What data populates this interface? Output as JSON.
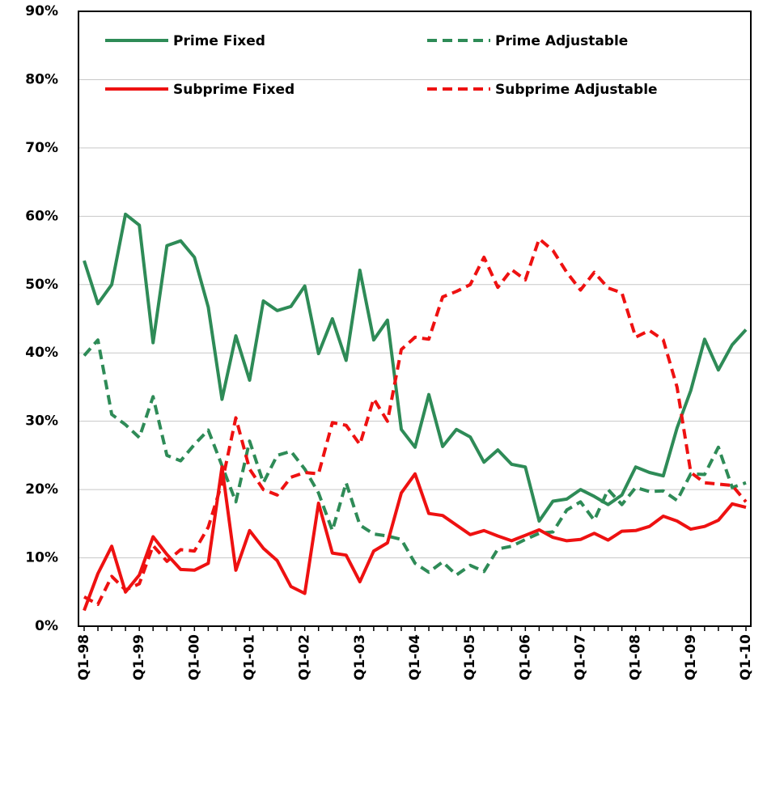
{
  "chart_data": {
    "type": "line",
    "categories": [
      "Q1-98",
      null,
      null,
      null,
      "Q1-99",
      null,
      null,
      null,
      "Q1-00",
      null,
      null,
      null,
      "Q1-01",
      null,
      null,
      null,
      "Q1-02",
      null,
      null,
      null,
      "Q1-03",
      null,
      null,
      null,
      "Q1-04",
      null,
      null,
      null,
      "Q1-05",
      null,
      null,
      null,
      "Q1-06",
      null,
      null,
      null,
      "Q1-07",
      null,
      null,
      null,
      "Q1-08",
      null,
      null,
      null,
      "Q1-09",
      null,
      null,
      null,
      "Q1-10"
    ],
    "series": [
      {
        "name": "Prime Fixed",
        "color": "#2e8b57",
        "dashed": false,
        "values": [
          53.5,
          47.2,
          50,
          60.3,
          58.7,
          41.5,
          55.7,
          56.4,
          54,
          46.7,
          33.2,
          42.5,
          36,
          47.6,
          46.2,
          46.8,
          49.8,
          39.9,
          45,
          38.9,
          52.1,
          41.9,
          44.8,
          28.8,
          26.2,
          33.9,
          26.3,
          28.8,
          27.7,
          24,
          25.8,
          23.7,
          23.3,
          15.4,
          18.3,
          18.6,
          20,
          19,
          17.8,
          19.2,
          23.3,
          22.5,
          22,
          29,
          34.5,
          42,
          37.5,
          41.2,
          43.4
        ]
      },
      {
        "name": "Prime Adjustable",
        "color": "#2e8b57",
        "dashed": true,
        "values": [
          39.6,
          41.9,
          31,
          29.5,
          27.6,
          33.6,
          25,
          24.2,
          26.6,
          28.7,
          23.5,
          18.2,
          27.1,
          21,
          25,
          25.6,
          23,
          19.5,
          14,
          21,
          14.8,
          13.5,
          13.2,
          12.7,
          9.2,
          7.9,
          9.4,
          7.5,
          8.9,
          8,
          11.3,
          11.7,
          12.7,
          13.6,
          13.8,
          17,
          18.2,
          15.5,
          20,
          17.8,
          20.3,
          19.7,
          19.8,
          18.4,
          22.3,
          22.2,
          26.2,
          20.3,
          21
        ]
      },
      {
        "name": "Subprime Fixed",
        "color": "#ee1111",
        "dashed": false,
        "values": [
          2.3,
          7.7,
          11.7,
          5,
          7.5,
          13.1,
          10.5,
          8.3,
          8.2,
          9.2,
          23.3,
          8.2,
          14,
          11.4,
          9.6,
          5.8,
          4.8,
          18,
          10.7,
          10.4,
          6.5,
          11,
          12.2,
          19.5,
          22.3,
          16.5,
          16.2,
          14.8,
          13.4,
          14,
          13.2,
          12.5,
          13.3,
          14.1,
          13,
          12.5,
          12.7,
          13.6,
          12.6,
          13.9,
          14,
          14.6,
          16.1,
          15.4,
          14.2,
          14.6,
          15.5,
          17.9,
          17.4
        ]
      },
      {
        "name": "Subprime Adjustable",
        "color": "#ee1111",
        "dashed": true,
        "values": [
          4.3,
          3.2,
          7.3,
          5.3,
          6.2,
          11.8,
          9.5,
          11.2,
          11,
          14.5,
          21,
          30.5,
          23,
          20,
          19.2,
          21.8,
          22.5,
          22.3,
          29.8,
          29.4,
          26.6,
          33.3,
          30,
          40.5,
          42.3,
          42,
          48.2,
          49,
          50,
          54,
          49.6,
          52.2,
          50.7,
          56.7,
          55,
          51.8,
          49.2,
          51.8,
          49.5,
          48.8,
          42.3,
          43.3,
          41.9,
          35,
          22.5,
          21,
          20.8,
          20.6,
          18.2
        ]
      }
    ],
    "ylim": [
      0,
      90
    ],
    "yticks": [
      {
        "value": 0,
        "label": "0%"
      },
      {
        "value": 10,
        "label": "10%"
      },
      {
        "value": 20,
        "label": "20%"
      },
      {
        "value": 30,
        "label": "30%"
      },
      {
        "value": 40,
        "label": "40%"
      },
      {
        "value": 50,
        "label": "50%"
      },
      {
        "value": 60,
        "label": "60%"
      },
      {
        "value": 70,
        "label": "70%"
      },
      {
        "value": 80,
        "label": "80%"
      },
      {
        "value": 90,
        "label": "90%"
      }
    ],
    "grid": true,
    "legend": "top"
  }
}
